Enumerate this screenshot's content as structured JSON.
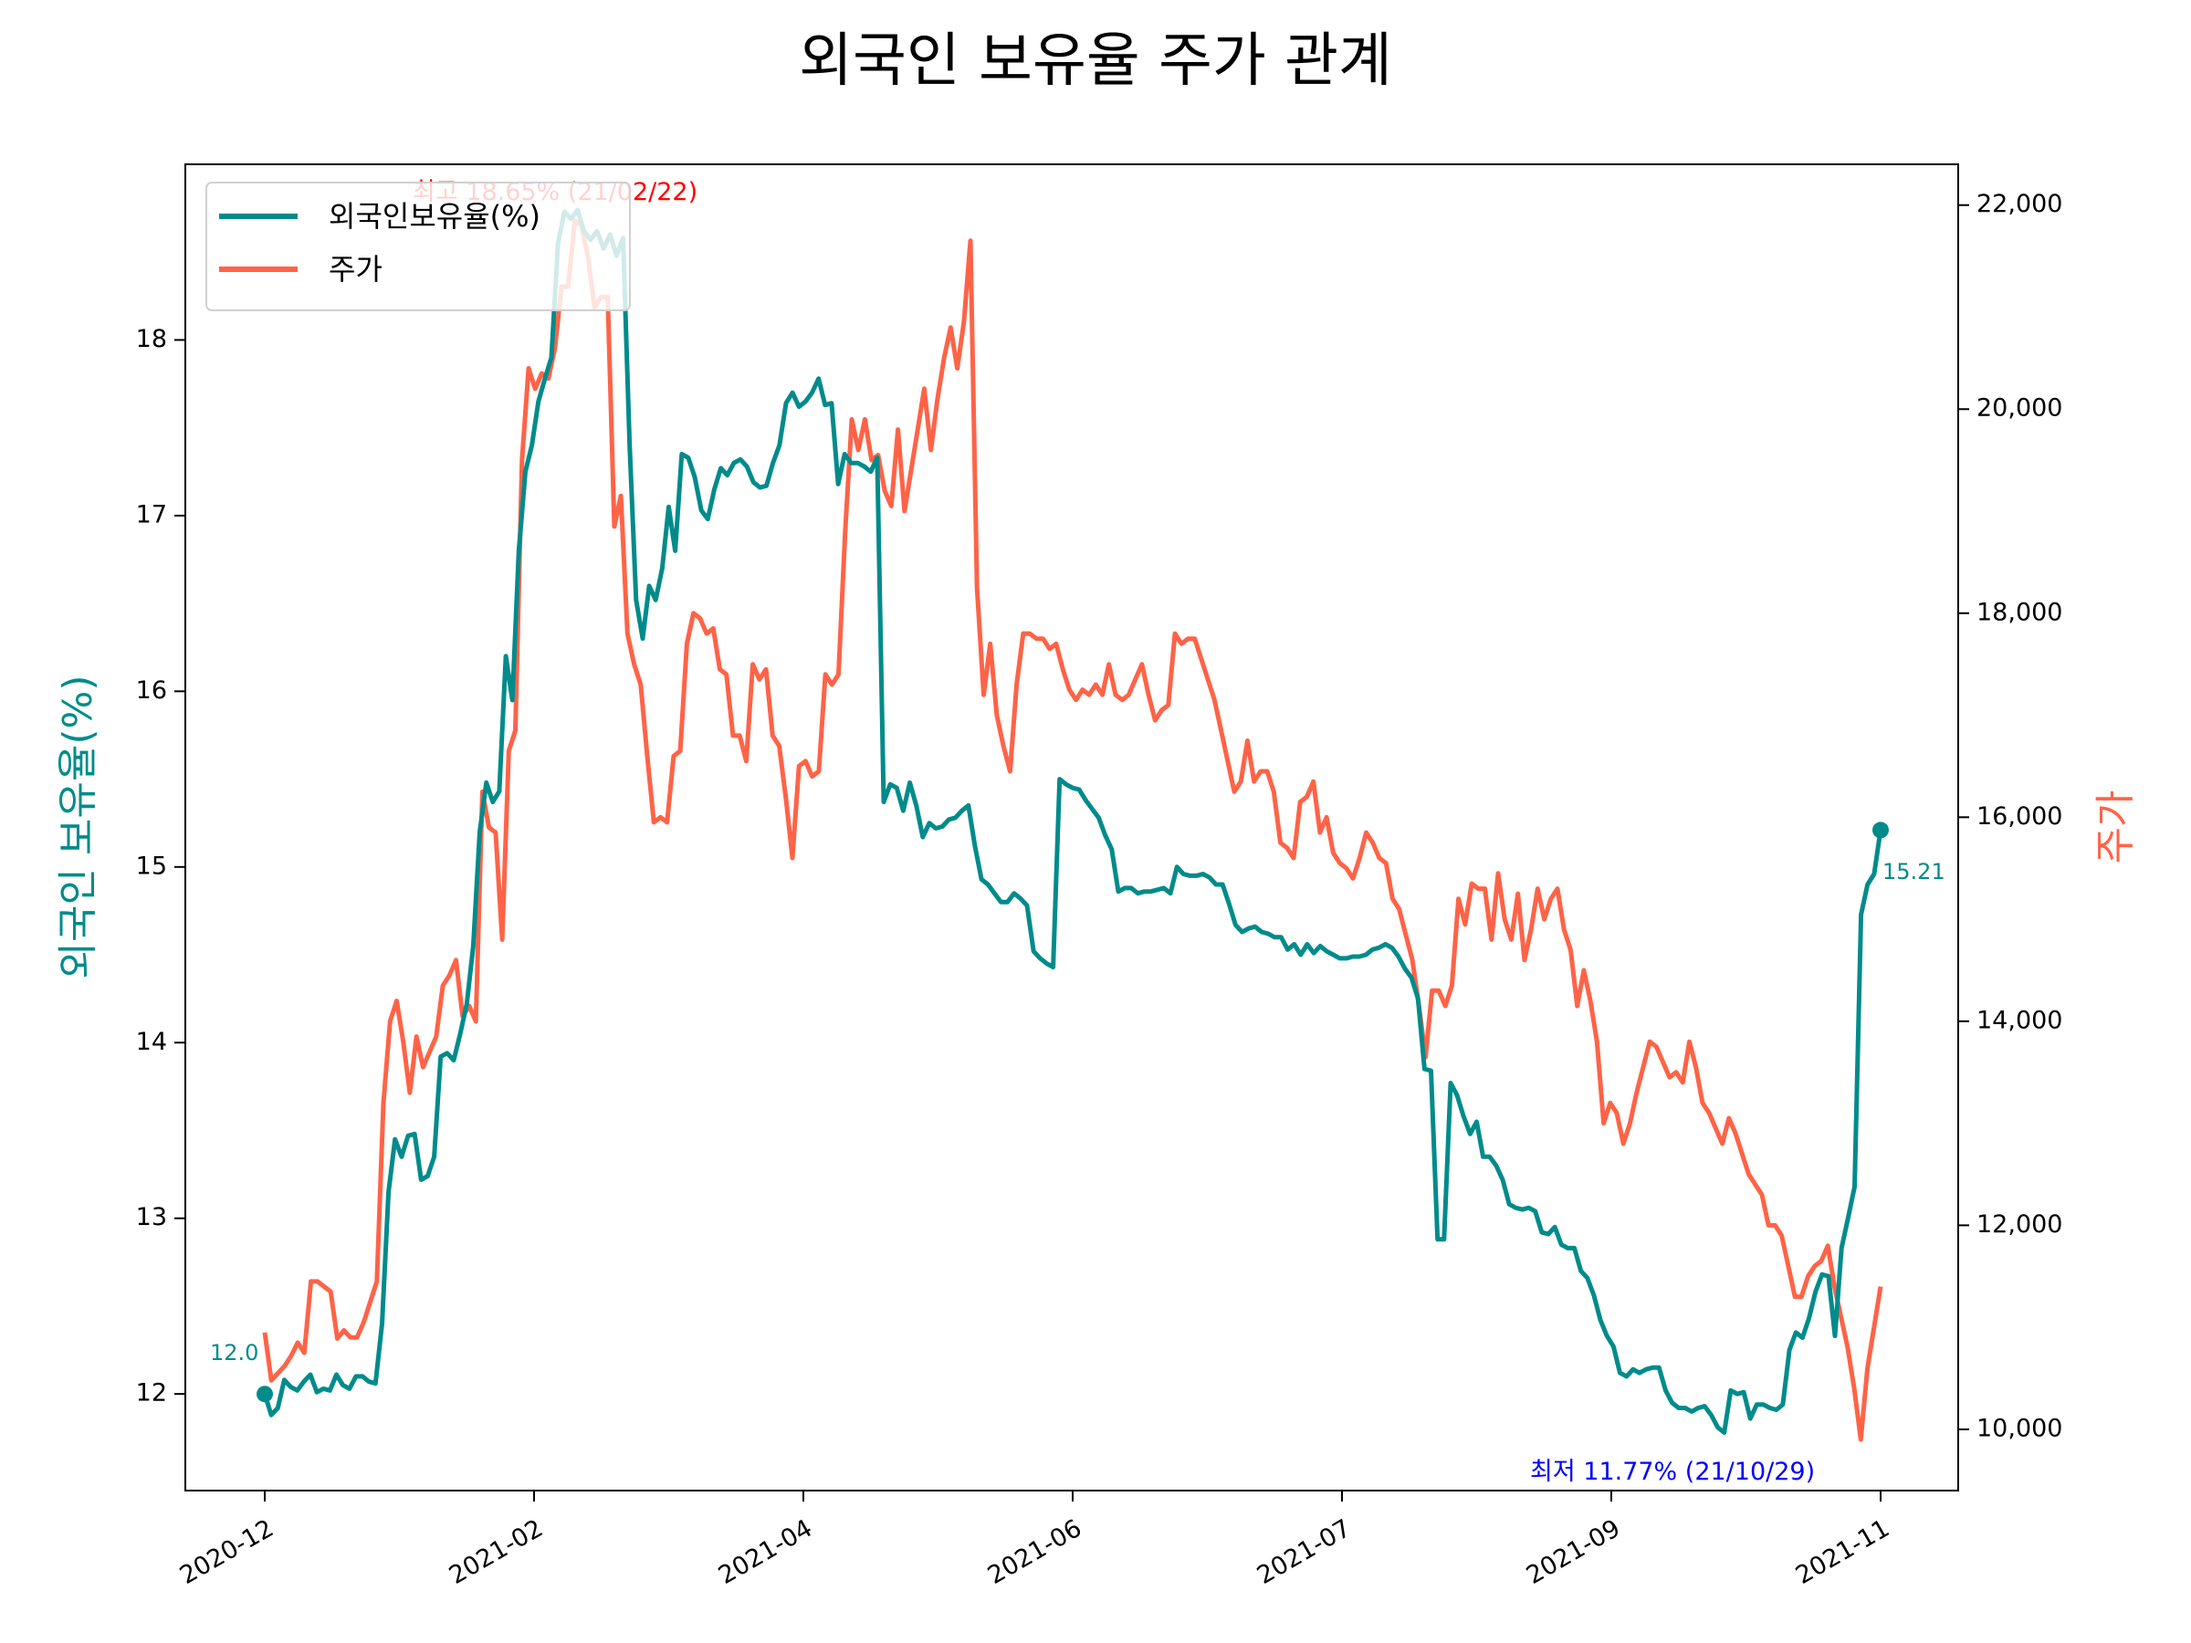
{
  "chart_data": {
    "type": "line",
    "title": "외국인 보유율 주가 관계",
    "x_tick_labels": [
      "2020-12",
      "2021-02",
      "2021-04",
      "2021-06",
      "2021-07",
      "2021-09",
      "2021-11"
    ],
    "y_left": {
      "label": "외국인 보유율(%)",
      "ticks": [
        "12",
        "13",
        "14",
        "15",
        "16",
        "17",
        "18"
      ],
      "ylim": [
        11.45,
        19.0
      ],
      "color": "#008b8b"
    },
    "y_right": {
      "label": "주가",
      "ticks": [
        "10,000",
        "12,000",
        "14,000",
        "16,000",
        "18,000",
        "20,000",
        "22,000"
      ],
      "ylim": [
        9400,
        22400
      ],
      "color": "#ff6347"
    },
    "grid": false,
    "legend_position": "upper left",
    "series": [
      {
        "name": "외국인보유율(%)",
        "axis": "left",
        "color": "#008b8b",
        "values": [
          12.0,
          11.88,
          11.92,
          12.08,
          12.04,
          12.02,
          12.07,
          12.11,
          12.01,
          12.03,
          12.02,
          12.11,
          12.05,
          12.03,
          12.1,
          12.1,
          12.07,
          12.06,
          12.4,
          13.15,
          13.45,
          13.35,
          13.47,
          13.48,
          13.22,
          13.24,
          13.35,
          13.92,
          13.94,
          13.9,
          14.05,
          14.22,
          14.55,
          15.2,
          15.48,
          15.37,
          15.43,
          16.2,
          15.95,
          16.8,
          17.25,
          17.4,
          17.65,
          17.78,
          17.9,
          18.55,
          18.73,
          18.69,
          18.74,
          18.62,
          18.57,
          18.62,
          18.52,
          18.6,
          18.48,
          18.58,
          17.4,
          16.52,
          16.3,
          16.6,
          16.52,
          16.7,
          17.05,
          16.8,
          17.35,
          17.33,
          17.22,
          17.03,
          16.98,
          17.15,
          17.27,
          17.23,
          17.3,
          17.32,
          17.28,
          17.19,
          17.16,
          17.17,
          17.3,
          17.4,
          17.64,
          17.7,
          17.62,
          17.65,
          17.7,
          17.78,
          17.63,
          17.64,
          17.18,
          17.35,
          17.3,
          17.3,
          17.28,
          17.25,
          17.33,
          15.37,
          15.47,
          15.45,
          15.32,
          15.48,
          15.35,
          15.17,
          15.25,
          15.22,
          15.23,
          15.27,
          15.28,
          15.32,
          15.35,
          15.12,
          14.93,
          14.9,
          14.85,
          14.8,
          14.8,
          14.85,
          14.82,
          14.78,
          14.52,
          14.48,
          14.45,
          14.43,
          15.5,
          15.47,
          15.45,
          15.44,
          15.38,
          15.33,
          15.28,
          15.18,
          15.1,
          14.86,
          14.88,
          14.88,
          14.85,
          14.86,
          14.86,
          14.87,
          14.88,
          14.85,
          15.0,
          14.96,
          14.95,
          14.95,
          14.96,
          14.94,
          14.9,
          14.9,
          14.79,
          14.67,
          14.63,
          14.65,
          14.66,
          14.63,
          14.62,
          14.6,
          14.6,
          14.53,
          14.56,
          14.5,
          14.56,
          14.51,
          14.55,
          14.52,
          14.5,
          14.48,
          14.48,
          14.49,
          14.49,
          14.5,
          14.53,
          14.54,
          14.56,
          14.54,
          14.49,
          14.42,
          14.37,
          14.25,
          13.85,
          13.84,
          12.88,
          12.88,
          13.77,
          13.7,
          13.58,
          13.48,
          13.55,
          13.35,
          13.35,
          13.3,
          13.22,
          13.08,
          13.06,
          13.05,
          13.06,
          13.04,
          12.92,
          12.91,
          12.95,
          12.85,
          12.83,
          12.83,
          12.7,
          12.66,
          12.56,
          12.42,
          12.33,
          12.27,
          12.12,
          12.1,
          12.14,
          12.12,
          12.14,
          12.15,
          12.15,
          12.02,
          11.95,
          11.92,
          11.92,
          11.9,
          11.92,
          11.93,
          11.88,
          11.81,
          11.78,
          12.02,
          12.0,
          12.01,
          11.86,
          11.94,
          11.94,
          11.92,
          11.91,
          11.94,
          12.25,
          12.35,
          12.32,
          12.43,
          12.58,
          12.68,
          12.67,
          12.33,
          12.83,
          13.0,
          13.18,
          14.73,
          14.9,
          14.96,
          15.21
        ]
      },
      {
        "name": "주가",
        "axis": "right",
        "color": "#ff6347",
        "values": [
          10950,
          10480,
          10550,
          10620,
          10720,
          10850,
          10750,
          11450,
          11450,
          11400,
          11350,
          10890,
          10970,
          10900,
          10900,
          11050,
          11250,
          11450,
          13200,
          14000,
          14200,
          13800,
          13300,
          13850,
          13550,
          13700,
          13850,
          14350,
          14450,
          14600,
          14050,
          14150,
          14000,
          16250,
          15900,
          15850,
          14800,
          16650,
          16850,
          19500,
          20400,
          20200,
          20350,
          20300,
          20600,
          21200,
          21200,
          21850,
          21800,
          21500,
          21000,
          21100,
          21100,
          18850,
          19150,
          17800,
          17500,
          17300,
          16600,
          15950,
          16000,
          15950,
          16600,
          16650,
          17700,
          18000,
          17950,
          17800,
          17850,
          17450,
          17400,
          16800,
          16800,
          16550,
          17500,
          17350,
          17450,
          16800,
          16700,
          16200,
          15600,
          16500,
          16550,
          16400,
          16450,
          17400,
          17300,
          17400,
          18800,
          19900,
          19600,
          19900,
          19500,
          19550,
          19200,
          19050,
          19800,
          19000,
          19400,
          19800,
          20200,
          19600,
          20100,
          20500,
          20800,
          20400,
          20850,
          21650,
          18250,
          17200,
          17700,
          17000,
          16700,
          16450,
          17300,
          17800,
          17800,
          17750,
          17750,
          17650,
          17700,
          17450,
          17250,
          17150,
          17250,
          17200,
          17300,
          17200,
          17500,
          17200,
          17150,
          17200,
          17350,
          17500,
          17200,
          16950,
          17050,
          17100,
          17800,
          17700,
          17750,
          17750,
          17550,
          17350,
          17150,
          16850,
          16550,
          16250,
          16350,
          16750,
          16350,
          16450,
          16450,
          16250,
          15750,
          15700,
          15600,
          16150,
          16200,
          16350,
          15850,
          16000,
          15650,
          15550,
          15500,
          15400,
          15600,
          15850,
          15750,
          15600,
          15550,
          15200,
          15100,
          14850,
          14600,
          14150,
          13650,
          14300,
          14300,
          14150,
          14350,
          15200,
          14950,
          15350,
          15300,
          15300,
          14800,
          15450,
          15000,
          14800,
          15250,
          14600,
          14900,
          15300,
          15000,
          15200,
          15300,
          14900,
          14700,
          14150,
          14500,
          14200,
          13800,
          13000,
          13200,
          13100,
          12800,
          13000,
          13300,
          13550,
          13800,
          13750,
          13600,
          13450,
          13500,
          13400,
          13800,
          13550,
          13200,
          13100,
          12950,
          12800,
          13050,
          12900,
          12700,
          12500,
          12400,
          12300,
          12000,
          12000,
          11900,
          11600,
          11300,
          11300,
          11500,
          11600,
          11650,
          11800,
          11400,
          11100,
          10800,
          10400,
          9900,
          10600,
          11000,
          11400
        ]
      }
    ],
    "annotations": {
      "max_label": "최고 18.65% (21/02/22)",
      "max_color": "#ff0000",
      "min_label": "최저 11.77% (21/10/29)",
      "min_color": "#0000ff",
      "start_label": "12.0",
      "end_label": "15.21"
    }
  }
}
